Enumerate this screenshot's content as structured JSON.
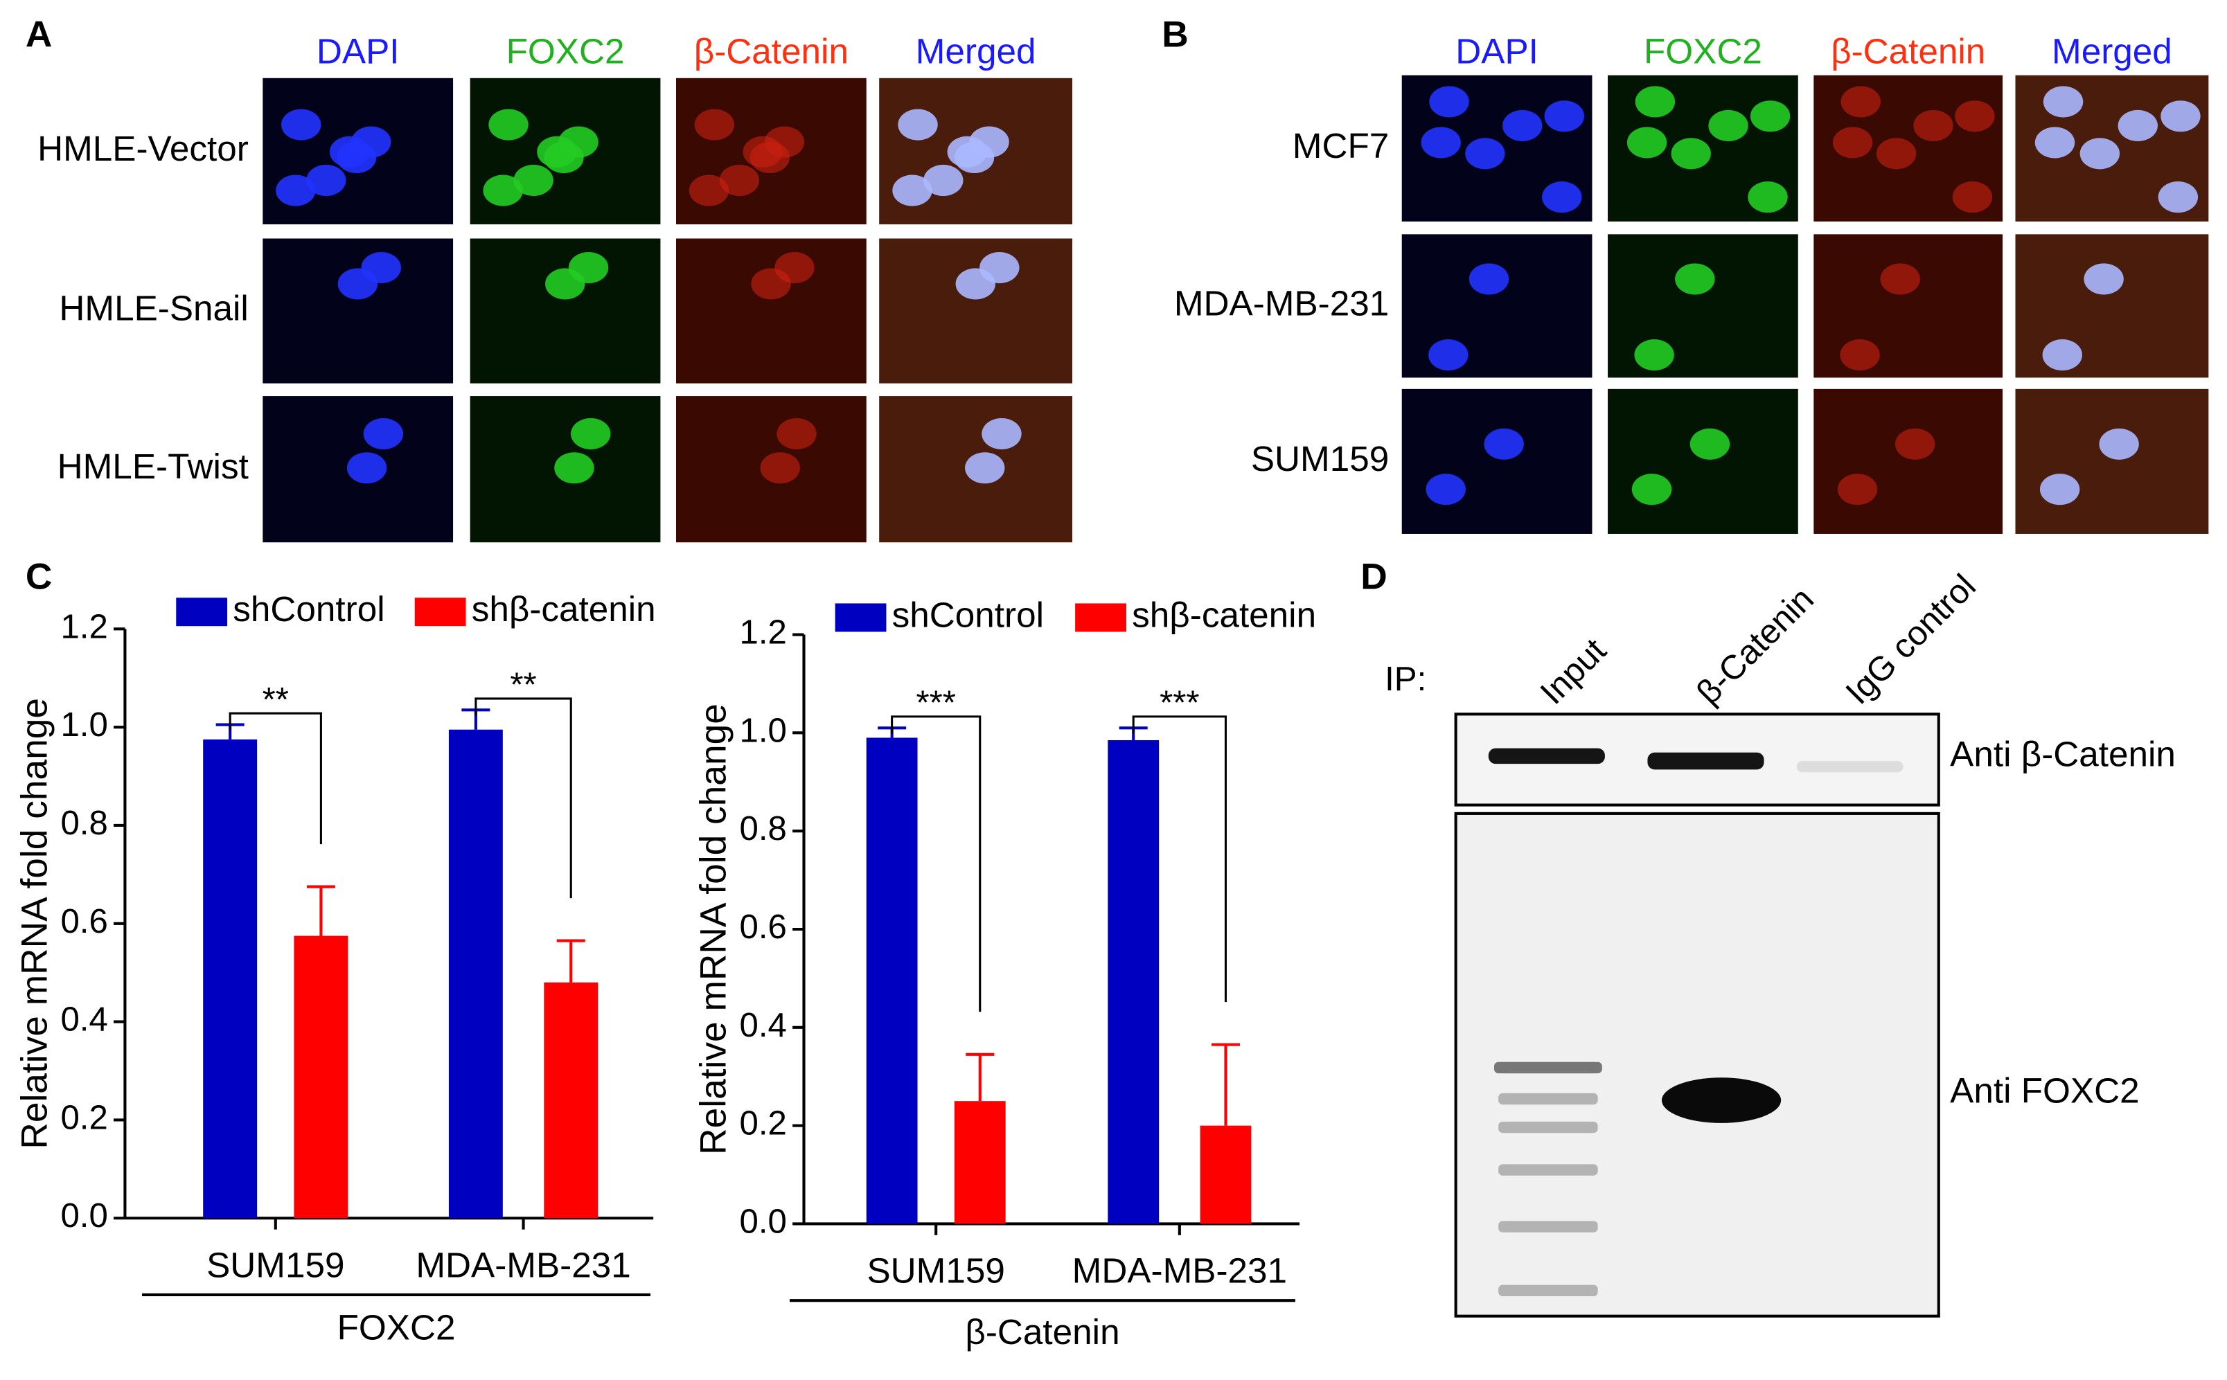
{
  "panels": {
    "A": {
      "label": "A",
      "columns": [
        "DAPI",
        "FOXC2",
        "β-Catenin",
        "Merged"
      ],
      "rows": [
        "HMLE-Vector",
        "HMLE-Snail",
        "HMLE-Twist"
      ]
    },
    "B": {
      "label": "B",
      "columns": [
        "DAPI",
        "FOXC2",
        "β-Catenin",
        "Merged"
      ],
      "rows": [
        "MCF7",
        "MDA-MB-231",
        "SUM159"
      ]
    },
    "C": {
      "label": "C"
    },
    "D": {
      "label": "D",
      "ip_label": "IP:",
      "lanes": [
        "Input",
        "β-Catenin",
        "IgG control"
      ],
      "blots": [
        "Anti β-Catenin",
        "Anti FOXC2"
      ]
    }
  },
  "chart_data": [
    {
      "type": "bar",
      "ylabel": "Relative mRNA fold change",
      "group_label": "FOXC2",
      "categories": [
        "SUM159",
        "MDA-MB-231"
      ],
      "series": [
        {
          "name": "shControl",
          "color": "#0000c0",
          "values": [
            0.975,
            0.995
          ],
          "errors": [
            0.03,
            0.04
          ]
        },
        {
          "name": "shβ-catenin",
          "color": "#ff0000",
          "values": [
            0.575,
            0.48
          ],
          "errors": [
            0.1,
            0.085
          ]
        }
      ],
      "significance": [
        "**",
        "**"
      ],
      "ylim": [
        0,
        1.2
      ],
      "yticks": [
        {
          "value": 0,
          "label": "0.0"
        },
        0.2,
        0.4,
        0.6,
        0.8,
        {
          "value": 1,
          "label": "1.0"
        },
        1.2
      ]
    },
    {
      "type": "bar",
      "ylabel": "Relative mRNA fold change",
      "group_label": "β-Catenin",
      "categories": [
        "SUM159",
        "MDA-MB-231"
      ],
      "series": [
        {
          "name": "shControl",
          "color": "#0000c0",
          "values": [
            0.99,
            0.985
          ],
          "errors": [
            0.02,
            0.025
          ]
        },
        {
          "name": "shβ-catenin",
          "color": "#ff0000",
          "values": [
            0.25,
            0.2
          ],
          "errors": [
            0.095,
            0.165
          ]
        }
      ],
      "significance": [
        "***",
        "***"
      ],
      "ylim": [
        0,
        1.2
      ],
      "yticks": [
        {
          "value": 0,
          "label": "0.0"
        },
        0.2,
        0.4,
        0.6,
        0.8,
        {
          "value": 1,
          "label": "1.0"
        },
        1.2
      ]
    }
  ]
}
